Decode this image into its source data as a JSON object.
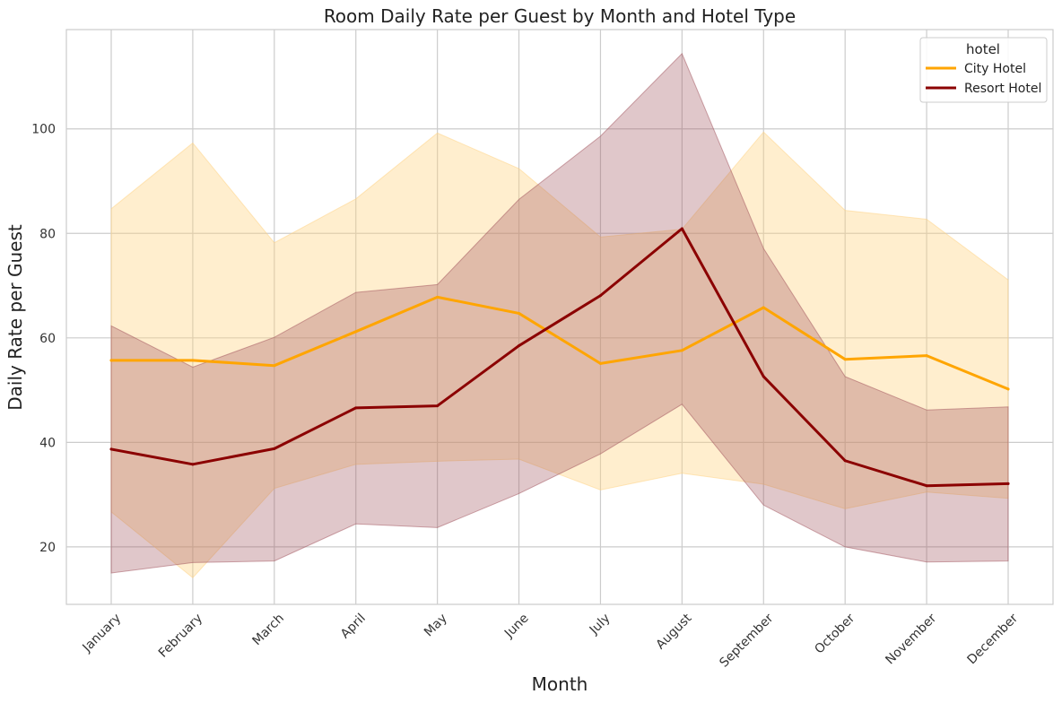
{
  "chart_data": {
    "type": "line",
    "title": "Room Daily Rate per Guest by Month and Hotel Type",
    "xlabel": "Month",
    "ylabel": "Daily Rate per Guest",
    "categories": [
      "January",
      "February",
      "March",
      "April",
      "May",
      "June",
      "July",
      "August",
      "September",
      "October",
      "November",
      "December"
    ],
    "ylim": [
      9,
      119
    ],
    "yticks": [
      20,
      40,
      60,
      80,
      100
    ],
    "grid": true,
    "legend": {
      "title": "hotel",
      "placement": "top-right"
    },
    "series": [
      {
        "name": "City Hotel",
        "color": "#FFA500",
        "band_color": "#FFD27F",
        "values": [
          55.7,
          55.7,
          54.7,
          61.2,
          67.8,
          64.7,
          55.1,
          57.6,
          65.8,
          55.9,
          56.6,
          50.2
        ],
        "upper": [
          84.7,
          97.3,
          78.2,
          86.6,
          99.2,
          92.4,
          79.3,
          80.8,
          99.4,
          84.4,
          82.7,
          71.1
        ],
        "lower": [
          26.7,
          14.1,
          31.2,
          35.8,
          36.4,
          36.8,
          30.9,
          34.1,
          32.0,
          27.3,
          30.5,
          29.3
        ]
      },
      {
        "name": "Resort Hotel",
        "color": "#8B0000",
        "band_color": "#A0505A",
        "values": [
          38.7,
          35.8,
          38.8,
          46.6,
          47.0,
          58.5,
          68.1,
          80.9,
          52.6,
          36.5,
          31.7,
          32.1
        ],
        "upper": [
          62.3,
          54.4,
          60.1,
          68.7,
          70.2,
          86.5,
          98.6,
          114.4,
          77.1,
          52.6,
          46.2,
          46.8
        ],
        "lower": [
          15.0,
          17.0,
          17.3,
          24.4,
          23.7,
          30.2,
          37.8,
          47.3,
          28.0,
          20.0,
          17.1,
          17.3
        ]
      }
    ]
  }
}
